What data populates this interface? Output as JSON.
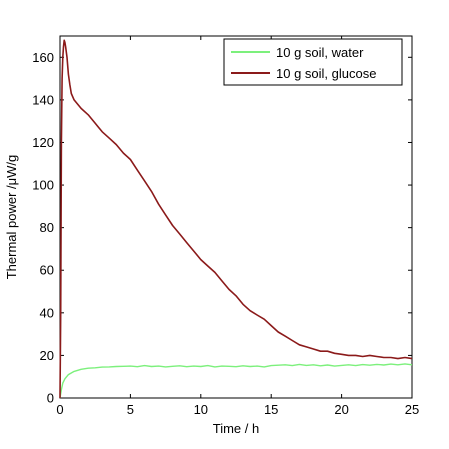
{
  "chart_data": {
    "type": "line",
    "title": "",
    "xlabel": "Time / h",
    "ylabel": "Thermal power /μW/g",
    "xlim": [
      0,
      25
    ],
    "ylim": [
      0,
      170
    ],
    "x_ticks": [
      0,
      5,
      10,
      15,
      20,
      25
    ],
    "y_ticks": [
      0,
      20,
      40,
      60,
      80,
      100,
      120,
      140,
      160
    ],
    "grid": false,
    "legend_position": "top-right",
    "series": [
      {
        "name": "10 g soil, water",
        "color": "#7cf07c",
        "x": [
          0,
          0.1,
          0.2,
          0.35,
          0.6,
          1,
          1.5,
          2,
          2.5,
          3,
          3.5,
          4,
          4.5,
          5,
          5.5,
          6,
          6.5,
          7,
          7.5,
          8,
          8.5,
          9,
          9.5,
          10,
          10.5,
          11,
          11.5,
          12,
          12.5,
          13,
          13.5,
          14,
          14.5,
          15,
          15.5,
          16,
          16.5,
          17,
          17.5,
          18,
          18.5,
          19,
          19.5,
          20,
          20.5,
          21,
          21.5,
          22,
          22.5,
          23,
          23.5,
          24,
          24.5,
          25
        ],
        "y": [
          0,
          4,
          7,
          9,
          11,
          12.5,
          13.5,
          14,
          14.2,
          14.5,
          14.6,
          14.8,
          14.9,
          15,
          14.7,
          15.2,
          14.8,
          15,
          14.6,
          14.9,
          15.1,
          14.7,
          15,
          14.8,
          15.2,
          14.6,
          15,
          14.9,
          14.7,
          15.1,
          14.8,
          15,
          14.6,
          15.2,
          15.4,
          15.6,
          15.2,
          15.8,
          15.3,
          15.6,
          15.1,
          15.5,
          15,
          15.3,
          15.6,
          15.2,
          15.7,
          15.4,
          15.8,
          15.5,
          15.9,
          15.6,
          16,
          15.6
        ]
      },
      {
        "name": "10 g soil, glucose",
        "color": "#8b1a1a",
        "x": [
          0,
          0.05,
          0.1,
          0.15,
          0.2,
          0.25,
          0.3,
          0.35,
          0.4,
          0.5,
          0.6,
          0.7,
          0.8,
          1,
          1.5,
          2,
          2.5,
          3,
          3.5,
          4,
          4.5,
          5,
          5.5,
          6,
          6.5,
          7,
          7.5,
          8,
          8.5,
          9,
          9.5,
          10,
          10.5,
          11,
          11.5,
          12,
          12.5,
          13,
          13.5,
          14,
          14.5,
          15,
          15.5,
          16,
          16.5,
          17,
          17.5,
          18,
          18.5,
          19,
          19.5,
          20,
          20.5,
          21,
          21.5,
          22,
          22.5,
          23,
          23.5,
          24,
          24.5,
          25
        ],
        "y": [
          0,
          40,
          120,
          150,
          160,
          165,
          168,
          167,
          165,
          160,
          152,
          147,
          143,
          140,
          136,
          133,
          129,
          125,
          122,
          119,
          115,
          112,
          107,
          102,
          97,
          91,
          86,
          81,
          77,
          73,
          69,
          65,
          62,
          59,
          55,
          51,
          48,
          44,
          41,
          39,
          37,
          34,
          31,
          29,
          27,
          25,
          24,
          23,
          22,
          22,
          21,
          20.5,
          20,
          20,
          19.5,
          20,
          19.5,
          19,
          19,
          18.5,
          19,
          18.5
        ]
      }
    ]
  }
}
